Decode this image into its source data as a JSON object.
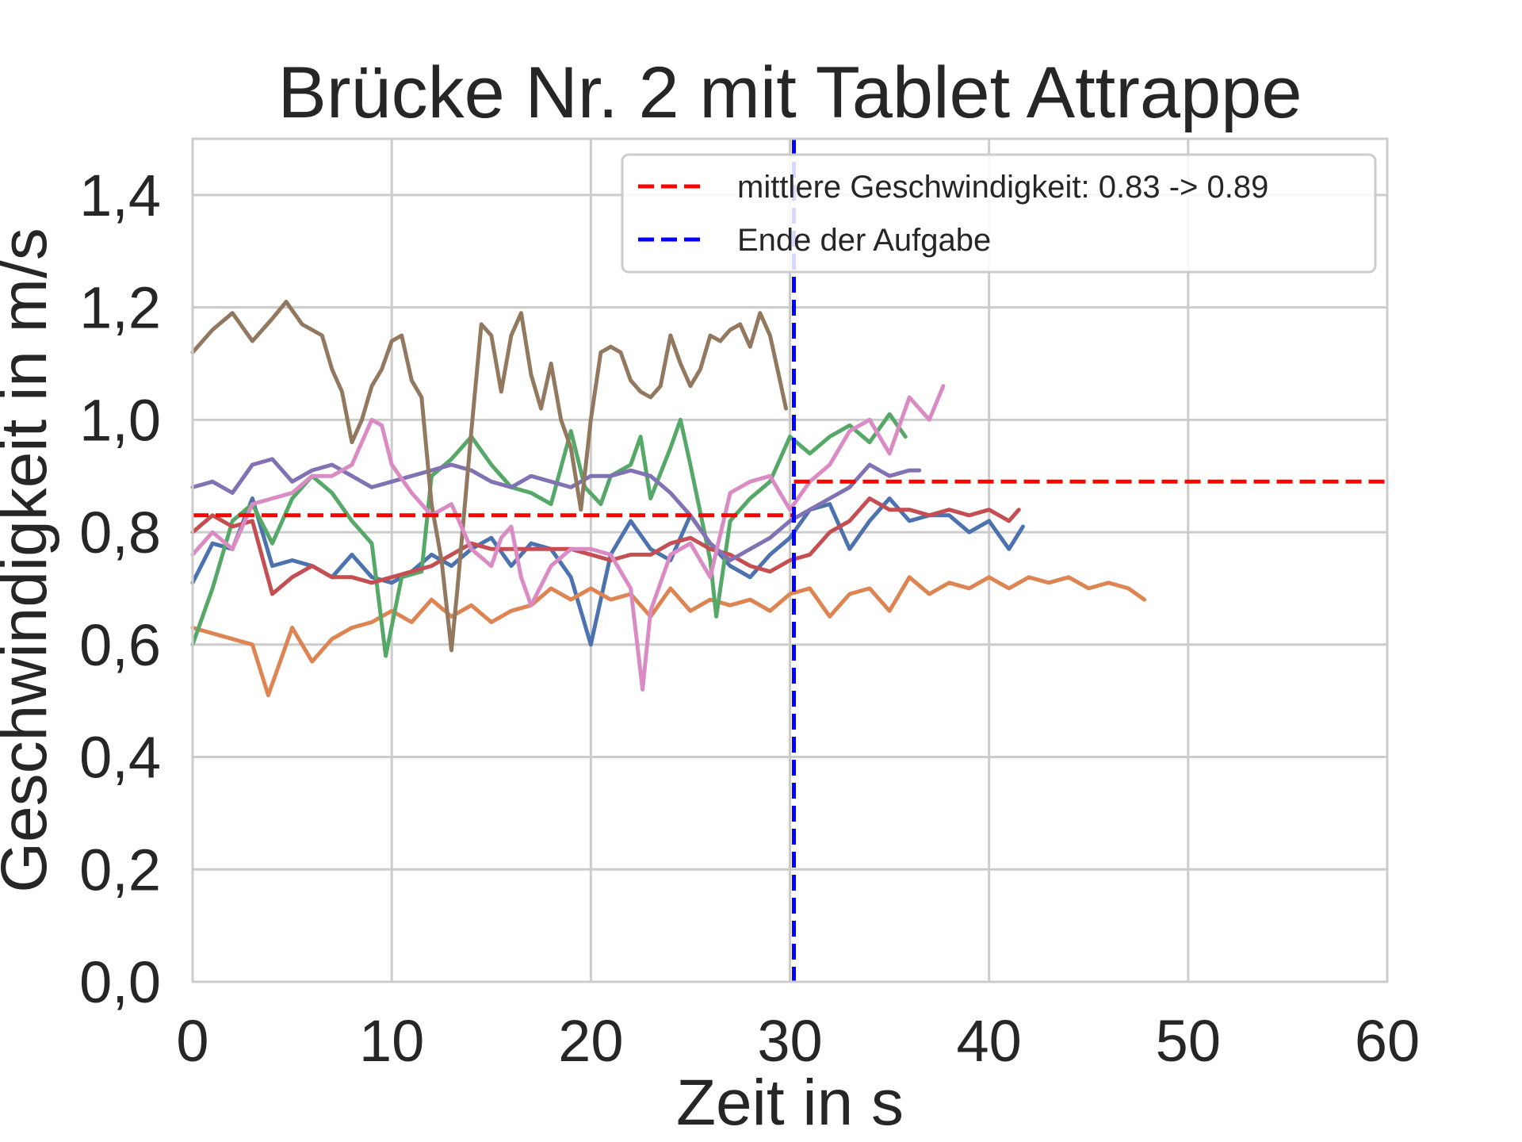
{
  "chart_data": {
    "type": "line",
    "title": "Brücke Nr. 2 mit Tablet Attrappe",
    "xlabel": "Zeit in s",
    "ylabel": "Geschwindigkeit in m/s",
    "xlim": [
      0,
      60
    ],
    "ylim": [
      0,
      1.5
    ],
    "xticks": [
      0,
      10,
      20,
      30,
      40,
      50,
      60
    ],
    "xtick_labels": [
      "0",
      "10",
      "20",
      "30",
      "40",
      "50",
      "60"
    ],
    "yticks": [
      0,
      0.2,
      0.4,
      0.6,
      0.8,
      1.0,
      1.2,
      1.4
    ],
    "ytick_labels": [
      "0,0",
      "0,2",
      "0,4",
      "0,6",
      "0,8",
      "1,0",
      "1,2",
      "1,4"
    ],
    "grid": true,
    "legend_position": "top-right",
    "legend": [
      {
        "label": "mittlere Geschwindigkeit: 0.83 -> 0.89",
        "color": "#ff0000",
        "style": "dashed"
      },
      {
        "label": "Ende der Aufgabe",
        "color": "#0000ff",
        "style": "dashed"
      }
    ],
    "reference_lines": [
      {
        "orientation": "horizontal",
        "y": 0.83,
        "x_range": [
          0,
          30.2
        ],
        "color": "#ff0000",
        "style": "dashed"
      },
      {
        "orientation": "horizontal",
        "y": 0.89,
        "x_range": [
          30.2,
          60
        ],
        "color": "#ff0000",
        "style": "dashed"
      },
      {
        "orientation": "vertical",
        "x": 30.2,
        "color": "#0000ff",
        "style": "dashed"
      }
    ],
    "series": [
      {
        "color": "#4c72b0",
        "x": [
          0,
          1,
          2,
          3,
          4,
          5,
          6,
          7,
          8,
          9,
          10,
          11,
          12,
          13,
          14,
          15,
          16,
          17,
          18,
          19,
          20,
          21,
          22,
          23,
          24,
          25,
          26,
          27,
          28,
          29,
          30,
          31,
          32,
          33,
          34,
          35,
          36,
          37,
          38,
          39,
          40,
          41,
          41.7
        ],
        "y": [
          0.71,
          0.78,
          0.77,
          0.86,
          0.74,
          0.75,
          0.74,
          0.72,
          0.76,
          0.72,
          0.71,
          0.73,
          0.76,
          0.74,
          0.77,
          0.79,
          0.74,
          0.78,
          0.77,
          0.72,
          0.6,
          0.76,
          0.82,
          0.77,
          0.75,
          0.83,
          0.78,
          0.74,
          0.72,
          0.76,
          0.79,
          0.84,
          0.85,
          0.77,
          0.82,
          0.86,
          0.82,
          0.83,
          0.83,
          0.8,
          0.82,
          0.77,
          0.81
        ]
      },
      {
        "color": "#dd8452",
        "x": [
          0,
          1,
          2,
          3,
          3.8,
          5,
          6,
          7,
          8,
          9,
          10,
          11,
          12,
          13,
          14,
          15,
          16,
          17,
          18,
          19,
          20,
          21,
          22,
          23,
          24,
          25,
          26,
          27,
          28,
          29,
          30,
          31,
          32,
          33,
          34,
          35,
          36,
          37,
          38,
          39,
          40,
          41,
          42,
          43,
          44,
          45,
          46,
          47,
          47.8
        ],
        "y": [
          0.63,
          0.62,
          0.61,
          0.6,
          0.51,
          0.63,
          0.57,
          0.61,
          0.63,
          0.64,
          0.66,
          0.64,
          0.68,
          0.65,
          0.67,
          0.64,
          0.66,
          0.67,
          0.7,
          0.68,
          0.7,
          0.68,
          0.69,
          0.65,
          0.7,
          0.66,
          0.68,
          0.67,
          0.68,
          0.66,
          0.69,
          0.7,
          0.65,
          0.69,
          0.7,
          0.66,
          0.72,
          0.69,
          0.71,
          0.7,
          0.72,
          0.7,
          0.72,
          0.71,
          0.72,
          0.7,
          0.71,
          0.7,
          0.68
        ]
      },
      {
        "color": "#55a868",
        "x": [
          0,
          1,
          2,
          3,
          4,
          5,
          6,
          7,
          8,
          9,
          9.7,
          10.5,
          11.5,
          12,
          13,
          14,
          15,
          16,
          17,
          18,
          19,
          19.7,
          20.5,
          21,
          22,
          22.5,
          23,
          24,
          24.5,
          25,
          26,
          26.3,
          27,
          28,
          29,
          30,
          31,
          32,
          33,
          34,
          35,
          35.8
        ],
        "y": [
          0.6,
          0.7,
          0.82,
          0.85,
          0.78,
          0.86,
          0.9,
          0.87,
          0.82,
          0.78,
          0.58,
          0.72,
          0.73,
          0.9,
          0.93,
          0.97,
          0.92,
          0.88,
          0.87,
          0.85,
          0.98,
          0.88,
          0.85,
          0.9,
          0.92,
          0.97,
          0.86,
          0.95,
          1.0,
          0.92,
          0.75,
          0.65,
          0.82,
          0.86,
          0.89,
          0.97,
          0.94,
          0.97,
          0.99,
          0.96,
          1.01,
          0.97
        ]
      },
      {
        "color": "#c44e52",
        "x": [
          0,
          1,
          2,
          3,
          4,
          5,
          6,
          7,
          8,
          9,
          10,
          11,
          12,
          13,
          14,
          15,
          16,
          17,
          18,
          19,
          20,
          21,
          22,
          23,
          24,
          25,
          26,
          27,
          28,
          29,
          30,
          31,
          32,
          33,
          34,
          35,
          36,
          37,
          38,
          39,
          40,
          41,
          41.5
        ],
        "y": [
          0.8,
          0.83,
          0.81,
          0.82,
          0.69,
          0.72,
          0.74,
          0.72,
          0.72,
          0.71,
          0.72,
          0.73,
          0.74,
          0.76,
          0.78,
          0.77,
          0.77,
          0.77,
          0.77,
          0.77,
          0.76,
          0.75,
          0.76,
          0.76,
          0.78,
          0.79,
          0.77,
          0.76,
          0.74,
          0.73,
          0.75,
          0.76,
          0.8,
          0.82,
          0.86,
          0.84,
          0.84,
          0.83,
          0.84,
          0.83,
          0.84,
          0.82,
          0.84
        ]
      },
      {
        "color": "#8172b3",
        "x": [
          0,
          1,
          2,
          3,
          4,
          5,
          6,
          7,
          8,
          9,
          10,
          11,
          12,
          13,
          14,
          15,
          16,
          17,
          18,
          19,
          20,
          21,
          22,
          23,
          24,
          25,
          26,
          27,
          28,
          29,
          30,
          31,
          32,
          33,
          34,
          35,
          36,
          36.5
        ],
        "y": [
          0.88,
          0.89,
          0.87,
          0.92,
          0.93,
          0.89,
          0.91,
          0.92,
          0.9,
          0.88,
          0.89,
          0.9,
          0.91,
          0.92,
          0.91,
          0.89,
          0.88,
          0.9,
          0.89,
          0.88,
          0.9,
          0.9,
          0.91,
          0.9,
          0.87,
          0.83,
          0.78,
          0.75,
          0.77,
          0.79,
          0.82,
          0.84,
          0.86,
          0.88,
          0.92,
          0.9,
          0.91,
          0.91
        ]
      },
      {
        "color": "#937860",
        "x": [
          0,
          1,
          2,
          3,
          4,
          4.7,
          5.5,
          6.5,
          7,
          7.5,
          8,
          8.5,
          9,
          9.5,
          10,
          10.5,
          11,
          11.5,
          12,
          12.5,
          13,
          13.3,
          14,
          14.5,
          15,
          15.5,
          16,
          16.5,
          17,
          17.5,
          18,
          18.5,
          19,
          19.5,
          20,
          20.5,
          21,
          21.5,
          22,
          22.5,
          23,
          23.5,
          24,
          24.5,
          25,
          25.5,
          26,
          26.5,
          27,
          27.5,
          28,
          28.5,
          29,
          29.5,
          29.8
        ],
        "y": [
          1.12,
          1.16,
          1.19,
          1.14,
          1.18,
          1.21,
          1.17,
          1.15,
          1.09,
          1.05,
          0.96,
          1.0,
          1.06,
          1.09,
          1.14,
          1.15,
          1.07,
          1.04,
          0.85,
          0.75,
          0.59,
          0.7,
          0.98,
          1.17,
          1.15,
          1.05,
          1.15,
          1.19,
          1.08,
          1.02,
          1.1,
          1.0,
          0.95,
          0.84,
          1.0,
          1.12,
          1.13,
          1.12,
          1.07,
          1.05,
          1.04,
          1.06,
          1.15,
          1.1,
          1.06,
          1.09,
          1.15,
          1.14,
          1.16,
          1.17,
          1.13,
          1.19,
          1.15,
          1.07,
          1.02
        ]
      },
      {
        "color": "#da8bc3",
        "x": [
          0,
          1,
          2,
          3,
          4,
          5,
          6,
          7,
          8,
          9,
          9.5,
          10,
          11,
          12,
          13,
          14,
          15,
          15.5,
          16,
          16.5,
          17,
          18,
          19,
          20,
          21,
          22,
          22.6,
          23,
          24,
          25,
          26,
          27,
          28,
          29,
          30,
          31,
          32,
          33,
          34,
          35,
          36,
          37,
          37.7
        ],
        "y": [
          0.76,
          0.8,
          0.77,
          0.85,
          0.86,
          0.87,
          0.9,
          0.9,
          0.92,
          1.0,
          0.99,
          0.92,
          0.87,
          0.83,
          0.85,
          0.77,
          0.74,
          0.79,
          0.81,
          0.72,
          0.67,
          0.74,
          0.77,
          0.77,
          0.76,
          0.7,
          0.52,
          0.66,
          0.76,
          0.78,
          0.72,
          0.87,
          0.89,
          0.9,
          0.84,
          0.89,
          0.92,
          0.98,
          1.0,
          0.94,
          1.04,
          1.0,
          1.06
        ]
      }
    ]
  }
}
